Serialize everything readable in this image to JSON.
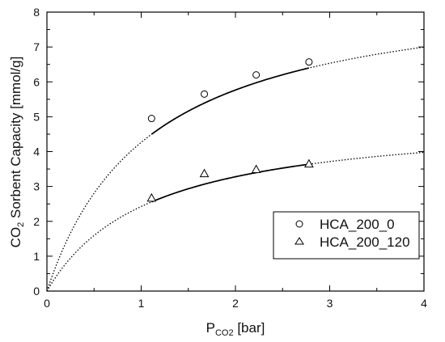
{
  "chart_data": {
    "type": "scatter",
    "xlabel": {
      "main": "P",
      "sub": "CO2",
      "unit": " [bar]"
    },
    "ylabel": {
      "pre": "CO",
      "sub": "2",
      "post": " Sorbent Capacity [mmol/g]"
    },
    "xlim": [
      0,
      4
    ],
    "ylim": [
      0,
      8
    ],
    "x_ticks": [
      "0",
      "1",
      "2",
      "3",
      "4"
    ],
    "y_ticks": [
      "0",
      "1",
      "2",
      "3",
      "4",
      "5",
      "6",
      "7",
      "8"
    ],
    "grid": false,
    "legend_position": "bottom-right",
    "series": [
      {
        "name": "HCA_200_0",
        "marker": "circle",
        "x": [
          1.11,
          1.67,
          2.22,
          2.78
        ],
        "y": [
          4.95,
          5.65,
          6.2,
          6.57
        ],
        "fit": {
          "model": "langmuir",
          "qmax": 8.9,
          "b": 0.92,
          "solid_range": [
            1.11,
            2.78
          ],
          "dotted_range": [
            0,
            4
          ]
        }
      },
      {
        "name": "HCA_200_120",
        "marker": "triangle",
        "x": [
          1.11,
          1.67,
          2.22,
          2.78
        ],
        "y": [
          2.67,
          3.37,
          3.49,
          3.65
        ],
        "fit": {
          "model": "langmuir",
          "qmax": 5.06,
          "b": 0.92,
          "solid_range": [
            1.11,
            2.78
          ],
          "dotted_range": [
            0,
            4
          ]
        }
      }
    ]
  }
}
